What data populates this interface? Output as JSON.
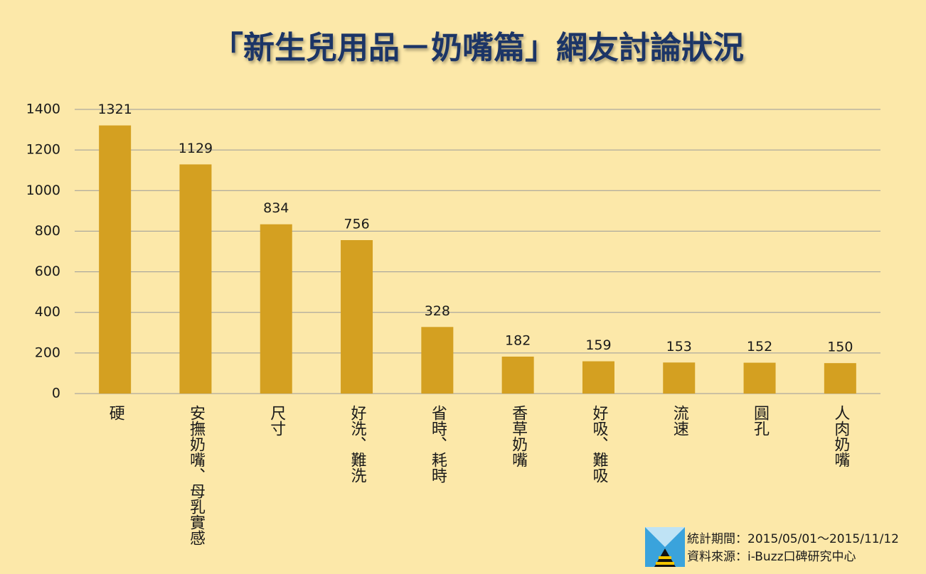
{
  "chart_data": {
    "type": "bar",
    "title": "「新生兒用品－奶嘴篇」網友討論狀況",
    "categories": [
      "硬",
      "安撫奶嘴、母乳實感",
      "尺寸",
      "好洗、難洗",
      "省時、耗時",
      "香草奶嘴",
      "好吸、難吸",
      "流速",
      "圓孔",
      "人肉奶嘴"
    ],
    "values": [
      1321,
      1129,
      834,
      756,
      328,
      182,
      159,
      153,
      152,
      150
    ],
    "color": "#d4a021",
    "ylim": [
      0,
      1400
    ],
    "yticks": [
      0,
      200,
      400,
      600,
      800,
      1000,
      1200,
      1400
    ],
    "grid": true,
    "footnotes": [
      "統計期間：2015/05/01～2015/11/12",
      "資料來源：i-Buzz口碑研究中心"
    ]
  }
}
